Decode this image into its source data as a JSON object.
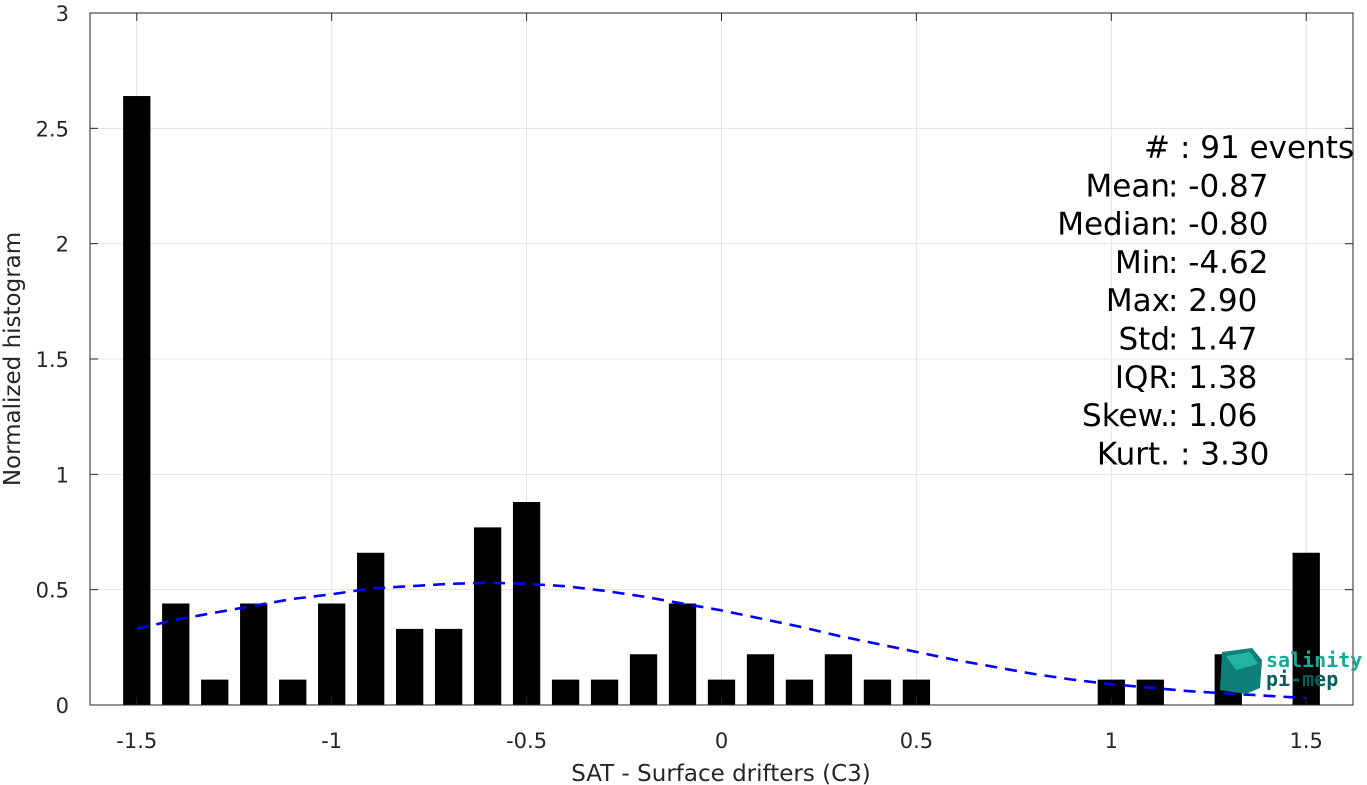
{
  "chart_data": {
    "type": "bar",
    "xlabel": "SAT - Surface drifters (C3)",
    "ylabel": "Normalized histogram",
    "xlim": [
      -1.62,
      1.62
    ],
    "ylim": [
      0,
      3
    ],
    "x_ticks": [
      -1.5,
      -1,
      -0.5,
      0,
      0.5,
      1,
      1.5
    ],
    "x_tick_labels": [
      "-1.5",
      "-1",
      "-0.5",
      "0",
      "0.5",
      "1",
      "1.5"
    ],
    "y_ticks": [
      0,
      0.5,
      1,
      1.5,
      2,
      2.5,
      3
    ],
    "y_tick_labels": [
      "0",
      "0.5",
      "1",
      "1.5",
      "2",
      "2.5",
      "3"
    ],
    "grid": true,
    "bar_width": 0.07,
    "bars": {
      "x": [
        -1.5,
        -1.4,
        -1.3,
        -1.2,
        -1.1,
        -1.0,
        -0.9,
        -0.8,
        -0.7,
        -0.6,
        -0.5,
        -0.4,
        -0.3,
        -0.2,
        -0.1,
        0.0,
        0.1,
        0.2,
        0.3,
        0.4,
        0.5,
        0.6,
        0.7,
        0.8,
        0.9,
        1.0,
        1.1,
        1.2,
        1.3,
        1.5
      ],
      "values": [
        2.64,
        0.44,
        0.11,
        0.44,
        0.11,
        0.44,
        0.66,
        0.33,
        0.33,
        0.77,
        0.88,
        0.11,
        0.11,
        0.22,
        0.44,
        0.11,
        0.22,
        0.11,
        0.22,
        0.11,
        0.11,
        0,
        0,
        0,
        0,
        0.11,
        0.11,
        0,
        0.22,
        0.66
      ],
      "color": "#000000"
    },
    "fit_curve": {
      "style": "dashed",
      "color": "#0000ff",
      "x": [
        -1.5,
        -1.4,
        -1.3,
        -1.2,
        -1.1,
        -1.0,
        -0.9,
        -0.8,
        -0.7,
        -0.6,
        -0.5,
        -0.4,
        -0.3,
        -0.2,
        -0.1,
        0.0,
        0.1,
        0.2,
        0.3,
        0.4,
        0.5,
        0.6,
        0.7,
        0.8,
        0.9,
        1.0,
        1.1,
        1.2,
        1.3,
        1.4,
        1.5
      ],
      "y": [
        0.33,
        0.37,
        0.4,
        0.43,
        0.46,
        0.48,
        0.505,
        0.515,
        0.525,
        0.53,
        0.525,
        0.515,
        0.495,
        0.47,
        0.44,
        0.41,
        0.375,
        0.34,
        0.3,
        0.265,
        0.23,
        0.195,
        0.165,
        0.135,
        0.11,
        0.09,
        0.075,
        0.06,
        0.05,
        0.04,
        0.03
      ]
    },
    "stats": [
      {
        "label": "#",
        "value": ": 91 events"
      },
      {
        "label": "Mean",
        "value": ": -0.87"
      },
      {
        "label": "Median",
        "value": ": -0.80"
      },
      {
        "label": "Min",
        "value": ": -4.62"
      },
      {
        "label": "Max",
        "value": ": 2.90"
      },
      {
        "label": "Std",
        "value": ": 1.47"
      },
      {
        "label": "IQR",
        "value": ": 1.38"
      },
      {
        "label": "Skew.",
        "value": ": 1.06"
      },
      {
        "label": "Kurt.",
        "value": ": 3.30"
      }
    ]
  },
  "logo": {
    "line1": "salinity",
    "line2": "pi-mep",
    "color": "#1aa89a",
    "dark_color": "#0b5e5e"
  }
}
